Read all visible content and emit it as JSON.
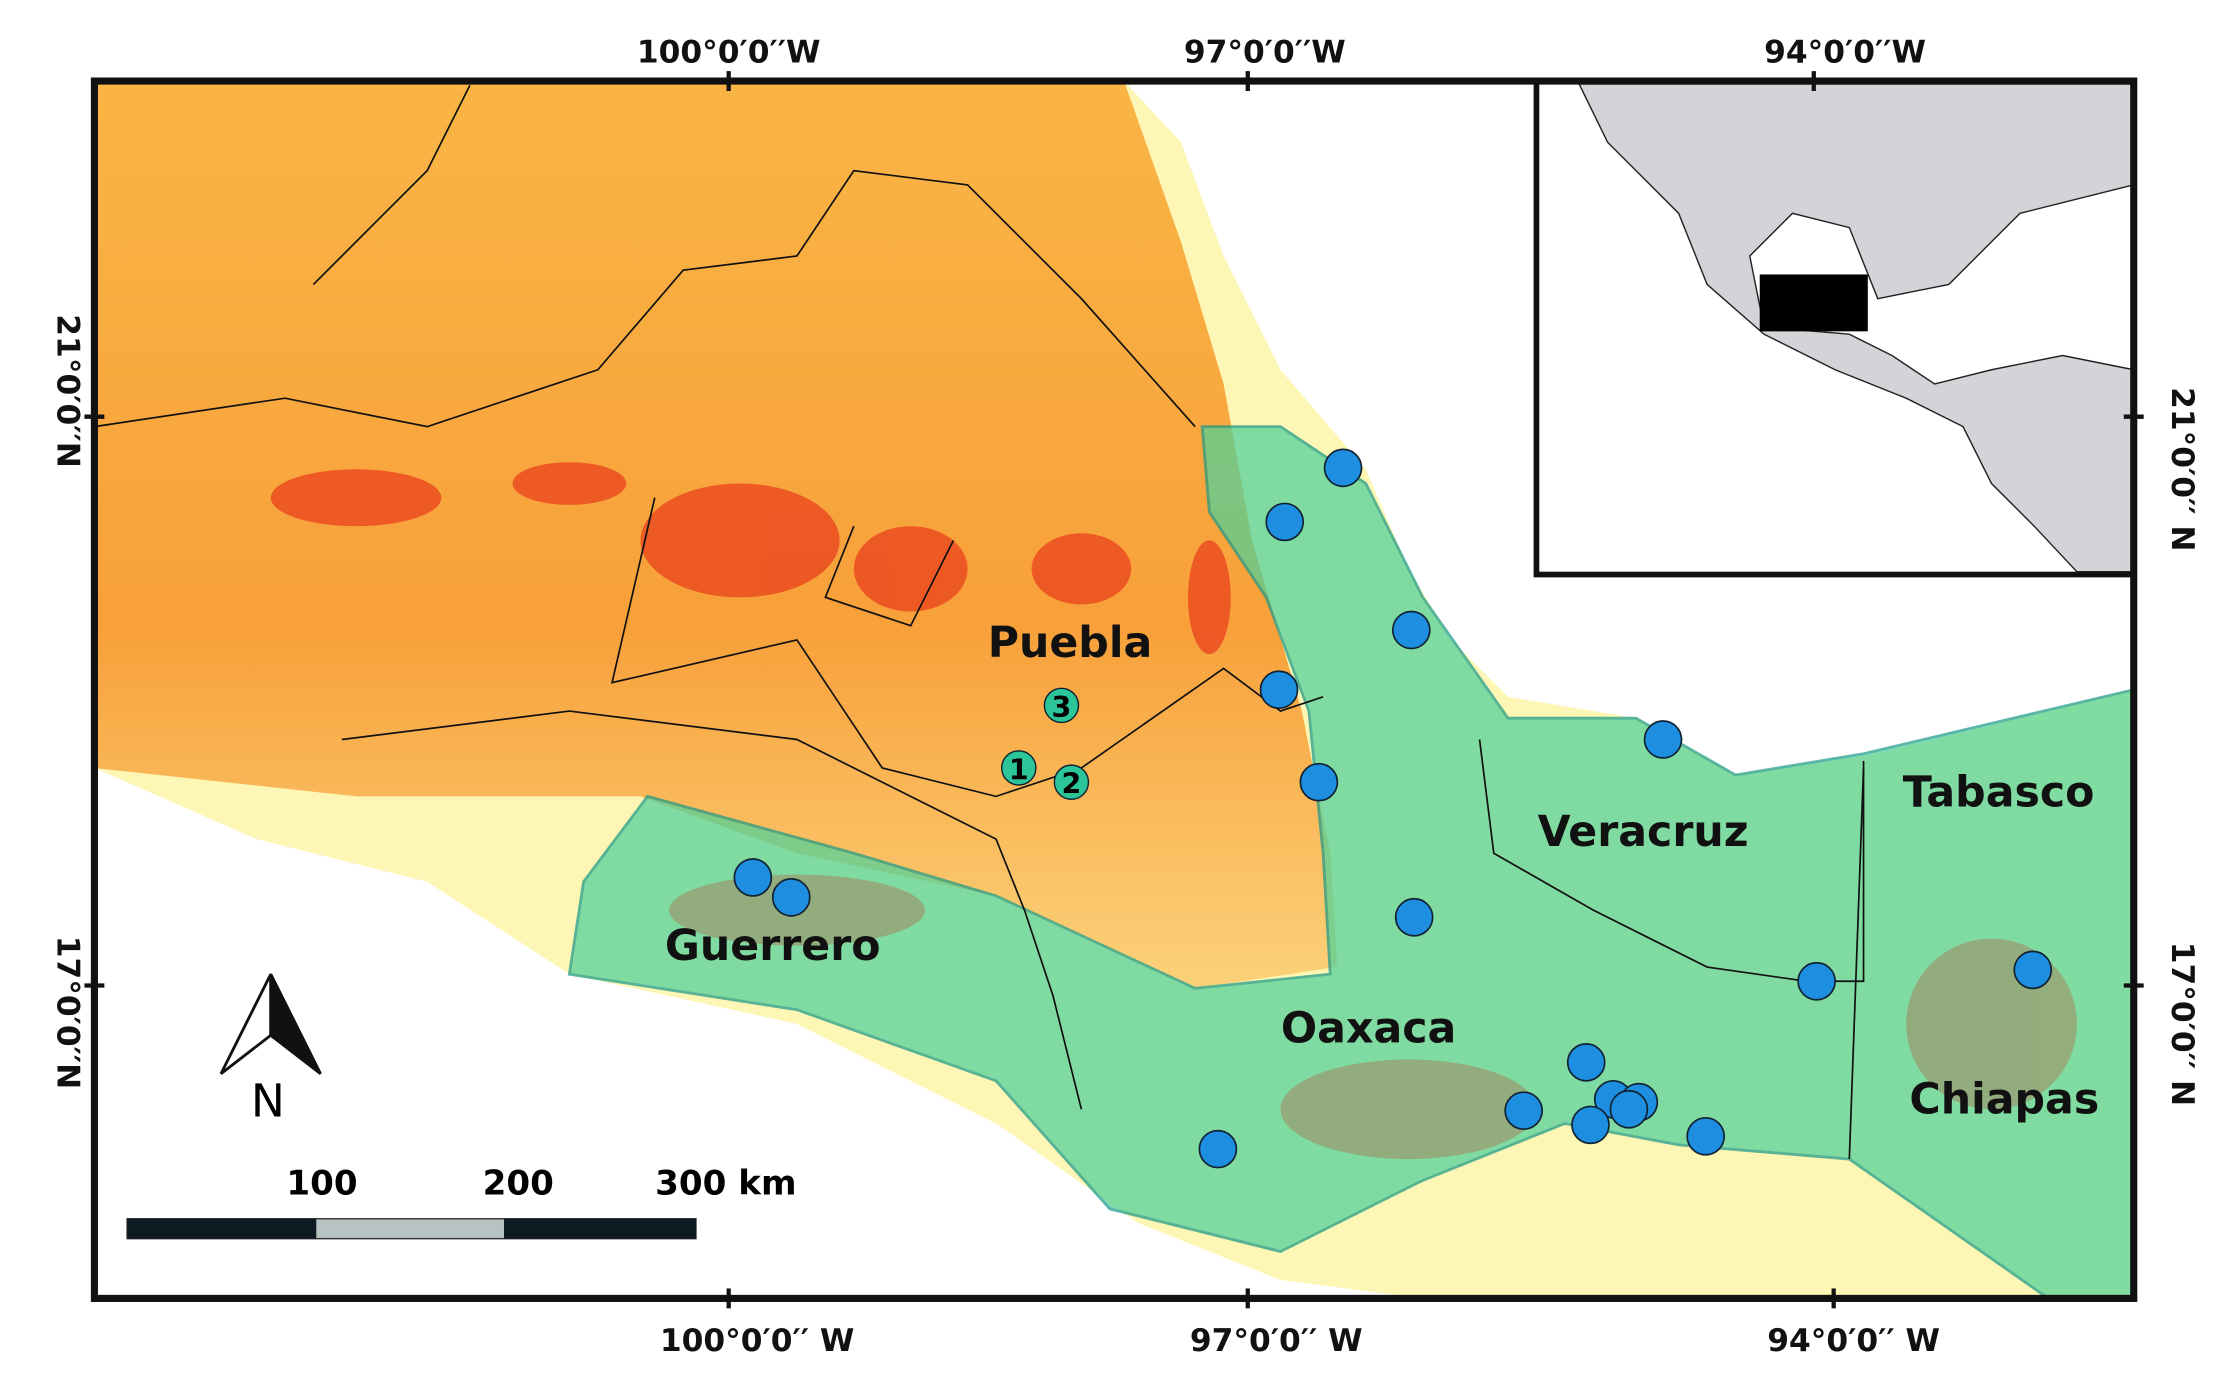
{
  "top_axis": [
    "100°0′0′′W",
    "97°0′0′′W",
    "94°0′0′′W"
  ],
  "bottom_axis": [
    "100°0′0′′ W",
    "97°0′0′′ W",
    "94°0′0′′ W"
  ],
  "left_axis": [
    "21°0′0′′N",
    "17°0′0′′N"
  ],
  "right_axis": [
    "21°0′0′′ N",
    "17°0′0′′ N"
  ],
  "states": [
    "Puebla",
    "Veracruz",
    "Tabasco",
    "Guerrero",
    "Oaxaca",
    "Chiapas"
  ],
  "sites": [
    "1",
    "2",
    "3"
  ],
  "north_arrow": "N",
  "scale_bar": [
    "100",
    "200",
    "300 km"
  ]
}
